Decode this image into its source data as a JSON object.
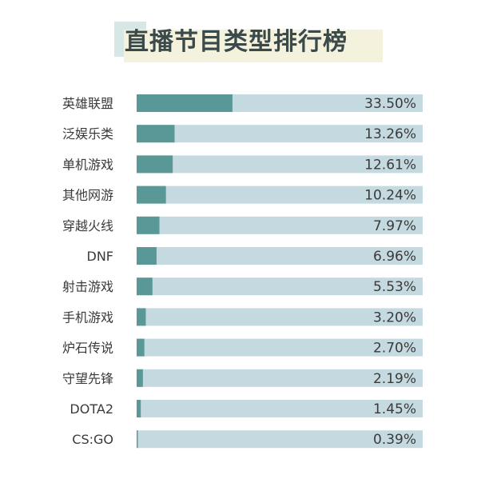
{
  "colors": {
    "track": "#c5dae0",
    "bar": "#5a9897",
    "title_bg": "#f4f1dc",
    "title_accent": "#d6e7e6",
    "text": "#3a3a3a"
  },
  "chart_data": {
    "type": "bar",
    "orientation": "horizontal",
    "title": "直播节目类型排行榜",
    "xlabel": "",
    "ylabel": "",
    "xlim": [
      0,
      100
    ],
    "grid": false,
    "categories": [
      "英雄联盟",
      "泛娱乐类",
      "单机游戏",
      "其他网游",
      "穿越火线",
      "DNF",
      "射击游戏",
      "手机游戏",
      "炉石传说",
      "守望先锋",
      "DOTA2",
      "CS:GO"
    ],
    "values": [
      33.5,
      13.26,
      12.61,
      10.24,
      7.97,
      6.96,
      5.53,
      3.2,
      2.7,
      2.19,
      1.45,
      0.39
    ],
    "value_labels": [
      "33.50%",
      "13.26%",
      "12.61%",
      "10.24%",
      "7.97%",
      "6.96%",
      "5.53%",
      "3.20%",
      "2.70%",
      "2.19%",
      "1.45%",
      "0.39%"
    ]
  }
}
